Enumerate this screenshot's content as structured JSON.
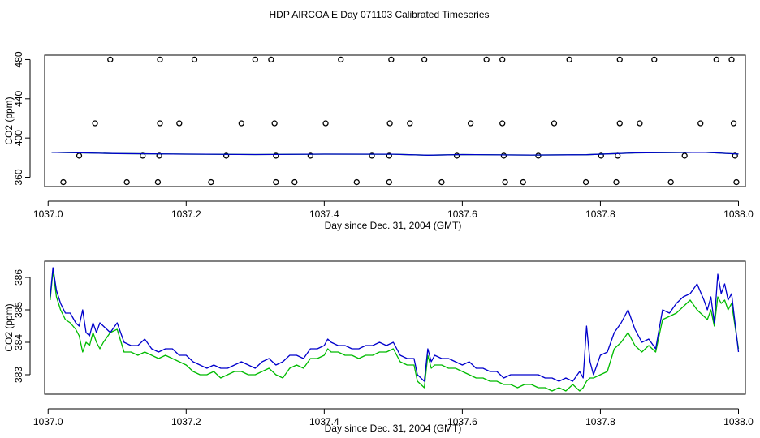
{
  "title": "HDP AIRCOA E  Day 071103  Calibrated Timeseries",
  "colors": {
    "reference": "#000000",
    "blue_series": "#0000cc",
    "green_series": "#00bb00"
  },
  "chart_data": [
    {
      "type": "scatter",
      "title": "",
      "xlabel": "Day since Dec. 31, 2004 (GMT)",
      "ylabel": "CO2 (ppm)",
      "xlim": [
        1036.995,
        1038.01
      ],
      "ylim": [
        350.5,
        484.5
      ],
      "x_ticks": [
        1037.0,
        1037.2,
        1037.4,
        1037.6,
        1037.8,
        1038.0
      ],
      "x_tick_labels": [
        "1037.0",
        "1037.2",
        "1037.4",
        "1037.6",
        "1037.8",
        "1038.0"
      ],
      "y_ticks": [
        360,
        400,
        440,
        480
      ],
      "y_tick_labels": [
        "360",
        "400",
        "440",
        "480"
      ],
      "grid": false,
      "legend": "none",
      "reference_points": {
        "level_480": [
          1037.09,
          1037.162,
          1037.212,
          1037.3,
          1037.323,
          1037.424,
          1037.497,
          1037.545,
          1037.635,
          1037.658,
          1037.755,
          1037.828,
          1037.878,
          1037.968,
          1037.99
        ],
        "level_415": [
          1037.068,
          1037.162,
          1037.19,
          1037.28,
          1037.328,
          1037.402,
          1037.495,
          1037.524,
          1037.612,
          1037.658,
          1037.733,
          1037.828,
          1037.857,
          1037.945,
          1037.993
        ],
        "level_382": [
          1037.045,
          1037.137,
          1037.161,
          1037.258,
          1037.33,
          1037.38,
          1037.469,
          1037.494,
          1037.592,
          1037.66,
          1037.71,
          1037.801,
          1037.825,
          1037.922,
          1037.995
        ],
        "level_355": [
          1037.022,
          1037.114,
          1037.159,
          1037.236,
          1037.33,
          1037.357,
          1037.447,
          1037.494,
          1037.57,
          1037.662,
          1037.688,
          1037.779,
          1037.823,
          1037.902,
          1037.997
        ]
      },
      "series": [
        {
          "x": [
            1037.005,
            1037.1,
            1037.2,
            1037.3,
            1037.4,
            1037.5,
            1037.55,
            1037.6,
            1037.7,
            1037.78,
            1037.85,
            1037.95,
            1038.0
          ],
          "values": [
            385.5,
            384.2,
            383.6,
            383.2,
            383.6,
            383.5,
            382.5,
            383.2,
            382.7,
            383.0,
            384.8,
            385.5,
            383.7
          ]
        }
      ]
    },
    {
      "type": "line",
      "title": "",
      "xlabel": "Day since Dec. 31, 2004 (GMT)",
      "ylabel": "CO2 (ppm)",
      "xlim": [
        1036.995,
        1038.01
      ],
      "ylim": [
        382.4,
        386.5
      ],
      "x_ticks": [
        1037.0,
        1037.2,
        1037.4,
        1037.6,
        1037.8,
        1038.0
      ],
      "x_tick_labels": [
        "1037.0",
        "1037.2",
        "1037.4",
        "1037.6",
        "1037.8",
        "1038.0"
      ],
      "y_ticks": [
        383,
        384,
        385,
        386
      ],
      "y_tick_labels": [
        "383",
        "384",
        "385",
        "386"
      ],
      "grid": false,
      "legend": "none",
      "series": [
        {
          "color": "#0000cc",
          "x": [
            1037.003,
            1037.007,
            1037.012,
            1037.018,
            1037.025,
            1037.032,
            1037.04,
            1037.045,
            1037.05,
            1037.055,
            1037.06,
            1037.065,
            1037.07,
            1037.075,
            1037.08,
            1037.09,
            1037.1,
            1037.11,
            1037.12,
            1037.13,
            1037.14,
            1037.15,
            1037.16,
            1037.17,
            1037.18,
            1037.19,
            1037.2,
            1037.21,
            1037.22,
            1037.23,
            1037.24,
            1037.25,
            1037.26,
            1037.27,
            1037.28,
            1037.29,
            1037.3,
            1037.31,
            1037.32,
            1037.33,
            1037.34,
            1037.35,
            1037.36,
            1037.37,
            1037.38,
            1037.39,
            1037.4,
            1037.405,
            1037.41,
            1037.42,
            1037.43,
            1037.44,
            1037.45,
            1037.46,
            1037.47,
            1037.48,
            1037.49,
            1037.5,
            1037.51,
            1037.52,
            1037.53,
            1037.535,
            1037.54,
            1037.545,
            1037.55,
            1037.555,
            1037.56,
            1037.57,
            1037.58,
            1037.59,
            1037.6,
            1037.61,
            1037.62,
            1037.63,
            1037.64,
            1037.65,
            1037.66,
            1037.67,
            1037.68,
            1037.69,
            1037.7,
            1037.71,
            1037.72,
            1037.73,
            1037.74,
            1037.75,
            1037.76,
            1037.77,
            1037.775,
            1037.78,
            1037.785,
            1037.79,
            1037.8,
            1037.81,
            1037.82,
            1037.83,
            1037.84,
            1037.85,
            1037.86,
            1037.87,
            1037.88,
            1037.89,
            1037.9,
            1037.91,
            1037.92,
            1037.93,
            1037.94,
            1037.95,
            1037.955,
            1037.96,
            1037.965,
            1037.97,
            1037.975,
            1037.98,
            1037.985,
            1037.99,
            1038.0
          ],
          "values": [
            385.4,
            386.3,
            385.6,
            385.2,
            384.9,
            384.9,
            384.6,
            384.5,
            385.0,
            384.3,
            384.2,
            384.6,
            384.3,
            384.6,
            384.5,
            384.3,
            384.6,
            384.0,
            383.9,
            383.9,
            384.1,
            383.8,
            383.7,
            383.8,
            383.8,
            383.6,
            383.6,
            383.4,
            383.3,
            383.2,
            383.3,
            383.2,
            383.2,
            383.3,
            383.4,
            383.3,
            383.2,
            383.4,
            383.5,
            383.3,
            383.4,
            383.6,
            383.6,
            383.5,
            383.8,
            383.8,
            383.9,
            384.1,
            384.0,
            383.9,
            383.9,
            383.8,
            383.8,
            383.9,
            383.9,
            384.0,
            383.9,
            384.0,
            383.6,
            383.5,
            383.5,
            383.0,
            382.9,
            382.8,
            383.8,
            383.4,
            383.6,
            383.5,
            383.5,
            383.4,
            383.3,
            383.4,
            383.2,
            383.2,
            383.1,
            383.1,
            382.9,
            383.0,
            383.0,
            383.0,
            383.0,
            383.0,
            382.9,
            382.9,
            382.8,
            382.9,
            382.8,
            383.1,
            382.9,
            384.5,
            383.4,
            383.0,
            383.6,
            383.7,
            384.3,
            384.6,
            385.0,
            384.4,
            384.0,
            384.1,
            383.8,
            385.0,
            384.9,
            385.2,
            385.4,
            385.5,
            385.8,
            385.3,
            385.0,
            385.4,
            384.6,
            386.1,
            385.5,
            385.8,
            385.3,
            385.5,
            383.7
          ]
        },
        {
          "color": "#00bb00",
          "x": [
            1037.003,
            1037.007,
            1037.012,
            1037.018,
            1037.025,
            1037.032,
            1037.04,
            1037.045,
            1037.05,
            1037.055,
            1037.06,
            1037.065,
            1037.07,
            1037.075,
            1037.08,
            1037.09,
            1037.1,
            1037.11,
            1037.12,
            1037.13,
            1037.14,
            1037.15,
            1037.16,
            1037.17,
            1037.18,
            1037.19,
            1037.2,
            1037.21,
            1037.22,
            1037.23,
            1037.24,
            1037.25,
            1037.26,
            1037.27,
            1037.28,
            1037.29,
            1037.3,
            1037.31,
            1037.32,
            1037.33,
            1037.34,
            1037.35,
            1037.36,
            1037.37,
            1037.38,
            1037.39,
            1037.4,
            1037.405,
            1037.41,
            1037.42,
            1037.43,
            1037.44,
            1037.45,
            1037.46,
            1037.47,
            1037.48,
            1037.49,
            1037.5,
            1037.51,
            1037.52,
            1037.53,
            1037.535,
            1037.54,
            1037.545,
            1037.55,
            1037.555,
            1037.56,
            1037.57,
            1037.58,
            1037.59,
            1037.6,
            1037.61,
            1037.62,
            1037.63,
            1037.64,
            1037.65,
            1037.66,
            1037.67,
            1037.68,
            1037.69,
            1037.7,
            1037.71,
            1037.72,
            1037.73,
            1037.74,
            1037.75,
            1037.76,
            1037.77,
            1037.775,
            1037.78,
            1037.785,
            1037.79,
            1037.8,
            1037.81,
            1037.82,
            1037.83,
            1037.84,
            1037.85,
            1037.86,
            1037.87,
            1037.88,
            1037.89,
            1037.9,
            1037.91,
            1037.92,
            1037.93,
            1037.94,
            1037.95,
            1037.955,
            1037.96,
            1037.965,
            1037.97,
            1037.975,
            1037.98,
            1037.985,
            1037.99,
            1038.0
          ],
          "values": [
            385.3,
            386.2,
            385.4,
            385.0,
            384.7,
            384.6,
            384.4,
            384.2,
            383.7,
            384.0,
            383.9,
            384.3,
            384.0,
            383.8,
            384.0,
            384.3,
            384.4,
            383.7,
            383.7,
            383.6,
            383.7,
            383.6,
            383.5,
            383.6,
            383.5,
            383.4,
            383.3,
            383.1,
            383.0,
            383.0,
            383.1,
            382.9,
            383.0,
            383.1,
            383.1,
            383.0,
            383.0,
            383.1,
            383.2,
            383.0,
            382.9,
            383.2,
            383.3,
            383.2,
            383.5,
            383.5,
            383.6,
            383.8,
            383.7,
            383.7,
            383.6,
            383.6,
            383.5,
            383.6,
            383.6,
            383.7,
            383.7,
            383.8,
            383.4,
            383.3,
            383.3,
            382.8,
            382.7,
            382.6,
            383.6,
            383.2,
            383.3,
            383.3,
            383.2,
            383.2,
            383.1,
            383.0,
            382.9,
            382.9,
            382.8,
            382.8,
            382.7,
            382.7,
            382.6,
            382.7,
            382.7,
            382.6,
            382.6,
            382.5,
            382.6,
            382.5,
            382.7,
            382.5,
            382.6,
            382.8,
            382.9,
            382.9,
            383.0,
            383.1,
            383.8,
            384.0,
            384.3,
            383.9,
            383.7,
            383.9,
            383.7,
            384.7,
            384.8,
            384.9,
            385.1,
            385.3,
            385.0,
            384.8,
            384.7,
            385.0,
            384.5,
            385.4,
            385.2,
            385.3,
            385.0,
            385.2,
            383.8
          ]
        }
      ]
    }
  ]
}
